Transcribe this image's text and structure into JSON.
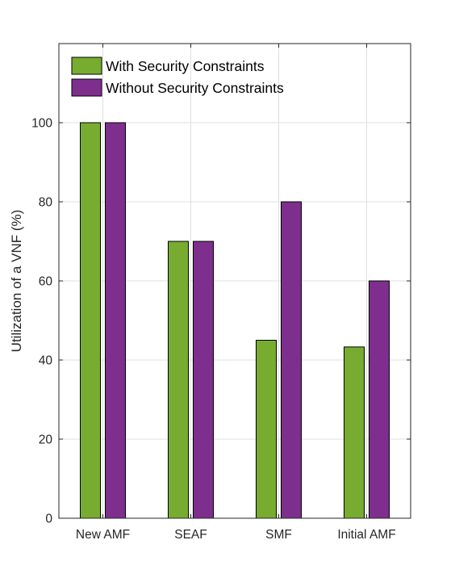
{
  "chart_data": {
    "type": "bar",
    "title": "",
    "xlabel": "",
    "ylabel": "Utilization of a VNF (%)",
    "categories": [
      "New AMF",
      "SEAF",
      "SMF",
      "Initial AMF"
    ],
    "series": [
      {
        "name": "With Security Constraints",
        "color": "#77ac30",
        "values": [
          100,
          70,
          45,
          43.3
        ]
      },
      {
        "name": "Without Security Constraints",
        "color": "#7e2f8e",
        "values": [
          100,
          70,
          80,
          60
        ]
      }
    ],
    "ylim": [
      0,
      120
    ],
    "yticks": [
      0,
      20,
      40,
      60,
      80,
      100
    ],
    "grid": true,
    "legend_position": "top-left"
  }
}
